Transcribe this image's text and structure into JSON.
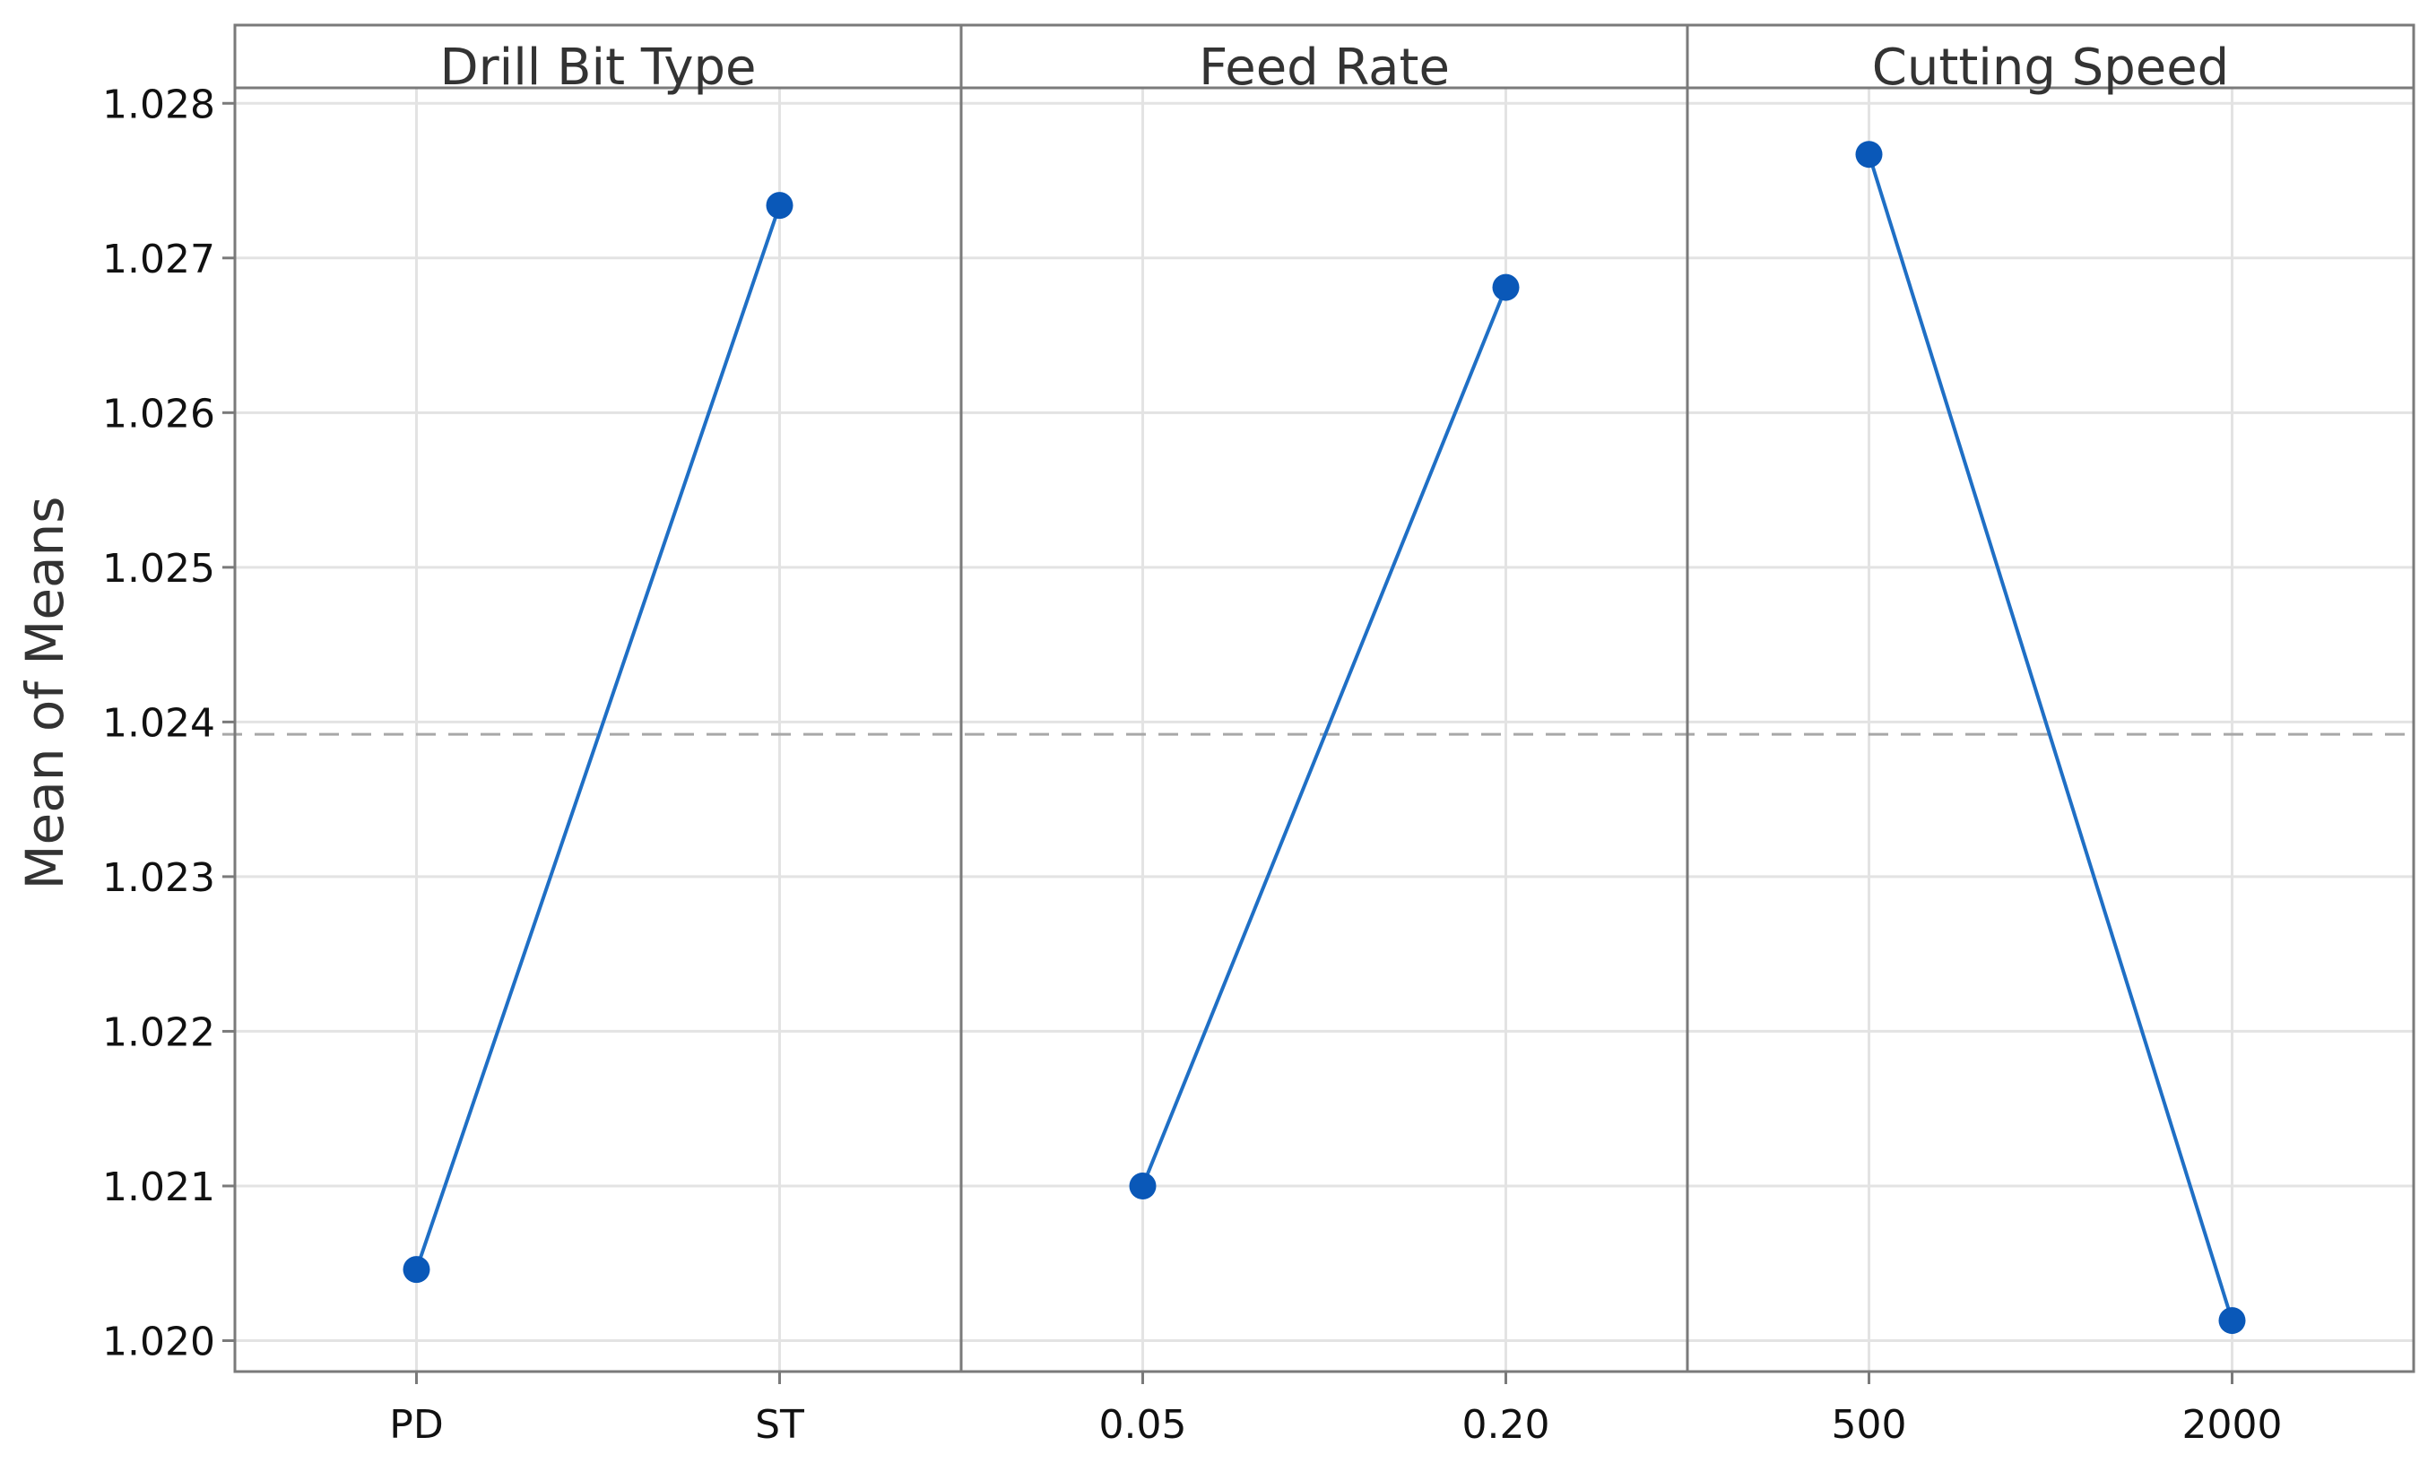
{
  "chart_data": {
    "type": "line",
    "title": "",
    "ylabel": "Mean of Means",
    "ylim": [
      1.0198,
      1.0281
    ],
    "yticks": [
      "1.020",
      "1.021",
      "1.022",
      "1.023",
      "1.024",
      "1.025",
      "1.026",
      "1.027",
      "1.028"
    ],
    "reference_line": 1.02392,
    "grid": true,
    "colors": {
      "series": "#1f6fc5",
      "marker": "#0a58b8",
      "frame": "#7a7a7a",
      "reference": "#a8a8a8"
    },
    "panels": [
      {
        "label": "Drill Bit Type",
        "categories": [
          "PD",
          "ST"
        ],
        "values": [
          1.02046,
          1.02734
        ]
      },
      {
        "label": "Feed Rate",
        "categories": [
          "0.05",
          "0.20"
        ],
        "values": [
          1.021,
          1.02681
        ]
      },
      {
        "label": "Cutting Speed",
        "categories": [
          "500",
          "2000"
        ],
        "values": [
          1.02767,
          1.02013
        ]
      }
    ]
  }
}
